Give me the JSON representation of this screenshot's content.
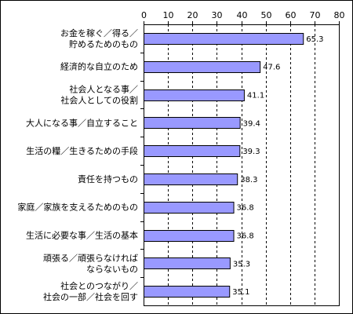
{
  "chart_data": {
    "type": "bar",
    "orientation": "horizontal",
    "categories": [
      [
        "お金を稼ぐ／得る／",
        "貯めるためのもの"
      ],
      [
        "経済的な自立のため"
      ],
      [
        "社会人となる事／",
        "社会人としての役割"
      ],
      [
        "大人になる事／自立すること"
      ],
      [
        "生活の糧／生きるための手段"
      ],
      [
        "責任を持つもの"
      ],
      [
        "家庭／家族を支えるためのもの"
      ],
      [
        "生活に必要な事／生活の基本"
      ],
      [
        "頑張る／頑張らなければ",
        "ならないもの"
      ],
      [
        "社会とのつながり／",
        "社会の一部／社会を回す"
      ]
    ],
    "values": [
      65.3,
      47.6,
      41.1,
      39.4,
      39.3,
      38.3,
      36.8,
      36.8,
      35.3,
      35.1
    ],
    "value_labels": [
      "65.3",
      "47.6",
      "41.1",
      "39.4",
      "39.3",
      "38.3",
      "36.8",
      "36.8",
      "35.3",
      "35.1"
    ],
    "xlim": [
      0,
      80
    ],
    "xticks": [
      0,
      10,
      20,
      30,
      40,
      50,
      60,
      70,
      80
    ],
    "x_axis_position": "top",
    "grid": "vertical dashed",
    "legend": "none",
    "colors": {
      "bar_fill": "#9999ff",
      "bar_stroke": "#000000",
      "grid": "#000000",
      "axis": "#000000"
    }
  }
}
